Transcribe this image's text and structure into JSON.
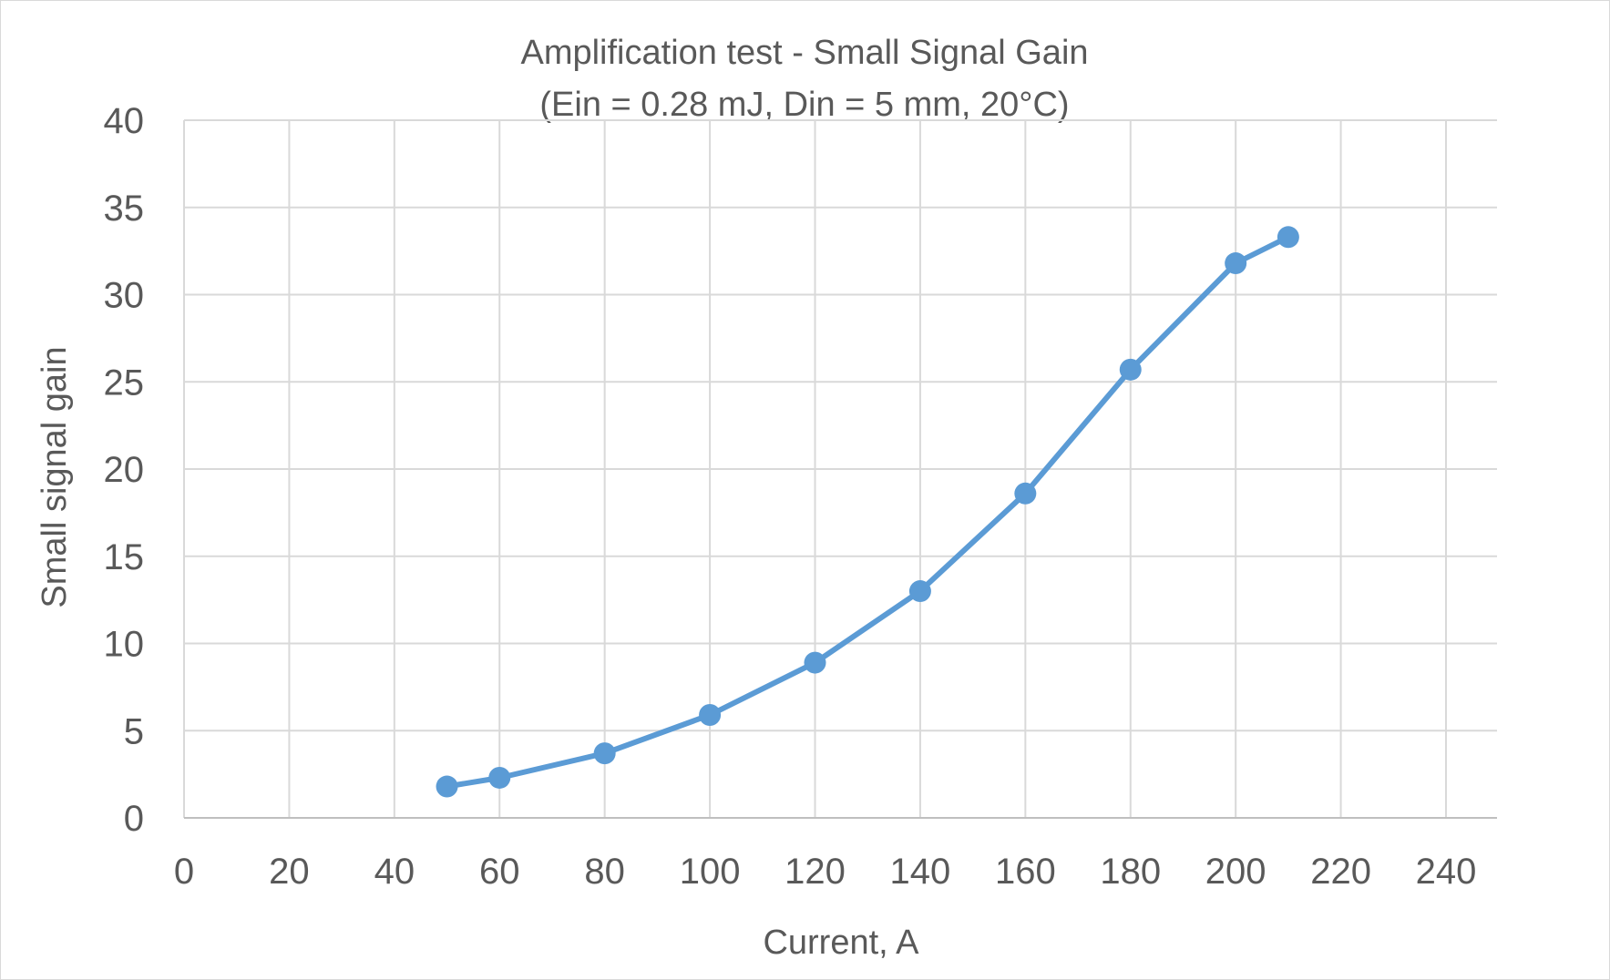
{
  "chart_data": {
    "type": "line",
    "title": "Amplification test - Small Signal Gain",
    "subtitle": "(Ein = 0.28 mJ, Din = 5 mm, 20°C)",
    "xlabel": "Current, A",
    "ylabel": "Small signal gain",
    "xlim": [
      0,
      240
    ],
    "ylim": [
      0,
      40
    ],
    "x_ticks": [
      0,
      20,
      40,
      60,
      80,
      100,
      120,
      140,
      160,
      180,
      200,
      220,
      240
    ],
    "y_ticks": [
      0,
      5,
      10,
      15,
      20,
      25,
      30,
      35,
      40
    ],
    "grid": true,
    "legend": "none",
    "series": [
      {
        "color": "#5b9bd5",
        "marker": "circle",
        "x": [
          50,
          60,
          80,
          100,
          120,
          140,
          160,
          180,
          200,
          210
        ],
        "y": [
          1.8,
          2.3,
          3.7,
          5.9,
          8.9,
          13.0,
          18.6,
          25.7,
          31.8,
          33.3
        ]
      }
    ]
  }
}
